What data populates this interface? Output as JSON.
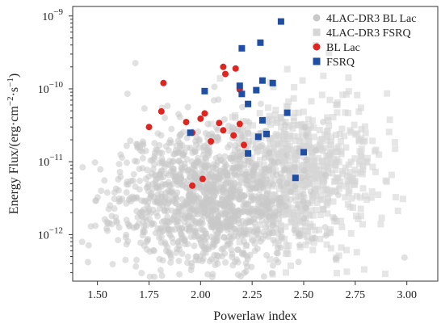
{
  "chart_data": {
    "type": "scatter",
    "xlabel": "Powerlaw index",
    "ylabel_parts": [
      "Energy Flux/(erg·cm",
      "−2",
      "·s",
      "−1",
      ")"
    ],
    "xlim": [
      1.38,
      3.15
    ],
    "ylim": [
      2.3e-13,
      1.35e-09
    ],
    "y_scale": "log",
    "x_ticks": [
      1.5,
      1.75,
      2.0,
      2.25,
      2.5,
      2.75,
      3.0
    ],
    "x_tick_labels": [
      "1.50",
      "1.75",
      "2.00",
      "2.25",
      "2.50",
      "2.75",
      "3.00"
    ],
    "y_ticks": [
      {
        "value": 1e-12,
        "base": "10",
        "exp": "−12"
      },
      {
        "value": 1e-11,
        "base": "10",
        "exp": "−11"
      },
      {
        "value": 1e-10,
        "base": "10",
        "exp": "−10"
      },
      {
        "value": 1e-09,
        "base": "10",
        "exp": "−9"
      }
    ],
    "grid": false,
    "legend": {
      "placement": "top-right",
      "entries": [
        {
          "label": "4LAC-DR3 BL Lac",
          "marker": "circle",
          "color": "#c8c8c8"
        },
        {
          "label": "4LAC-DR3 FSRQ",
          "marker": "square",
          "color": "#d6d6d6"
        },
        {
          "label": "BL Lac",
          "marker": "circle",
          "color": "#e0241f"
        },
        {
          "label": "FSRQ",
          "marker": "square",
          "color": "#1f4ea3"
        }
      ]
    },
    "series": [
      {
        "name": "BL Lac",
        "marker": "circle",
        "color": "#e0241f",
        "points": [
          [
            1.82,
            1.2e-10
          ],
          [
            1.81,
            4.9e-11
          ],
          [
            1.75,
            3e-11
          ],
          [
            1.93,
            3.5e-11
          ],
          [
            1.96,
            2.5e-11
          ],
          [
            2.0,
            3.9e-11
          ],
          [
            2.02,
            4.6e-11
          ],
          [
            2.09,
            3.4e-11
          ],
          [
            2.11,
            2.7e-11
          ],
          [
            2.16,
            2.3e-11
          ],
          [
            2.19,
            3.3e-11
          ],
          [
            2.21,
            1.7e-11
          ],
          [
            2.05,
            1.9e-11
          ],
          [
            2.11,
            2e-10
          ],
          [
            2.12,
            1.6e-10
          ],
          [
            2.17,
            1.9e-10
          ],
          [
            2.19,
            9.8e-11
          ],
          [
            2.01,
            5.8e-12
          ],
          [
            1.96,
            4.7e-12
          ]
        ]
      },
      {
        "name": "FSRQ",
        "marker": "square",
        "color": "#1f4ea3",
        "points": [
          [
            2.39,
            8.4e-10
          ],
          [
            2.29,
            4.3e-10
          ],
          [
            2.2,
            3.6e-10
          ],
          [
            2.3,
            1.3e-10
          ],
          [
            2.35,
            1.2e-10
          ],
          [
            2.19,
            1.1e-10
          ],
          [
            2.2,
            8.5e-11
          ],
          [
            2.27,
            9.6e-11
          ],
          [
            2.23,
            6.2e-11
          ],
          [
            2.42,
            4.7e-11
          ],
          [
            2.3,
            3.7e-11
          ],
          [
            2.32,
            2.4e-11
          ],
          [
            2.28,
            2.2e-11
          ],
          [
            2.23,
            1.3e-11
          ],
          [
            2.5,
            1.35e-11
          ],
          [
            2.46,
            6e-12
          ],
          [
            2.02,
            9.3e-11
          ],
          [
            1.95,
            2.5e-11
          ]
        ]
      }
    ],
    "background_samples": {
      "bl_lac": {
        "marker": "circle",
        "color": "#c8c8c8",
        "count": 1250,
        "x_mean": 2.02,
        "x_sd": 0.21,
        "log10_y_mean": -11.52,
        "log10_y_sd": 0.5,
        "seed": 11
      },
      "fsrq": {
        "marker": "square",
        "color": "#d6d6d6",
        "count": 780,
        "x_mean": 2.47,
        "x_sd": 0.18,
        "log10_y_mean": -11.18,
        "log10_y_sd": 0.52,
        "seed": 29
      }
    }
  }
}
